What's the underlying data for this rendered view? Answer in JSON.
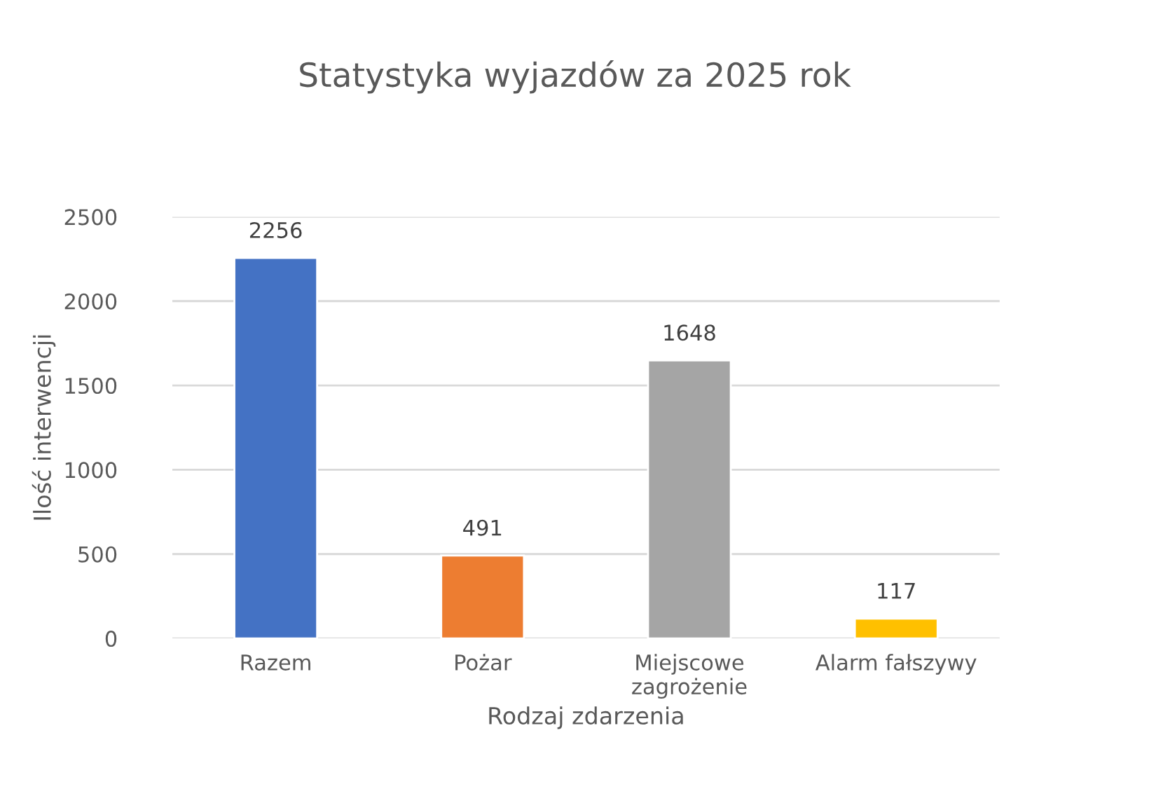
{
  "chart_data": {
    "type": "bar",
    "title": "Statystyka wyjazdów za 2025 rok",
    "xlabel": "Rodzaj zdarzenia",
    "ylabel": "Ilość interwencji",
    "categories": [
      "Razem",
      "Pożar",
      "Miejscowe\nzagrożenie",
      "Alarm fałszywy"
    ],
    "values": [
      2256,
      491,
      1648,
      117
    ],
    "colors": [
      "#4472c4",
      "#ed7d31",
      "#a5a5a5",
      "#ffc000"
    ],
    "ylim": [
      0,
      2500
    ],
    "yticks": [
      0,
      500,
      1000,
      1500,
      2000,
      2500
    ],
    "grid": "y",
    "data_labels": true
  }
}
